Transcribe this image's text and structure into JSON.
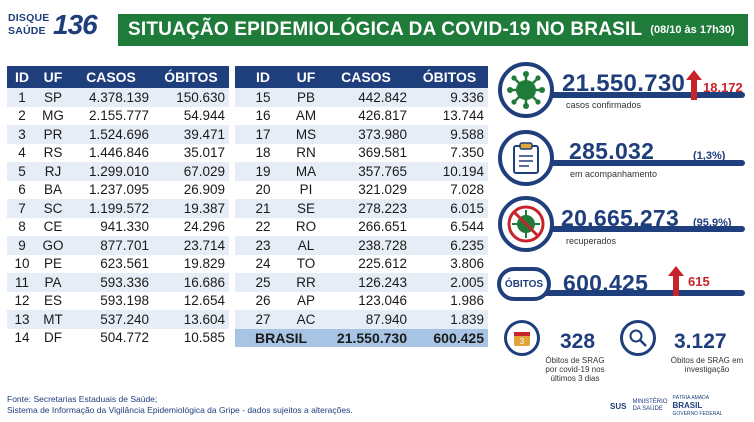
{
  "logo": {
    "line1": "DISQUE",
    "line2": "SAÚDE",
    "number": "136"
  },
  "title": "SITUAÇÃO EPIDEMIOLÓGICA DA COVID-19 NO BRASIL",
  "date": "(08/10 às 17h30)",
  "table": {
    "headers": [
      "ID",
      "UF",
      "CASOS",
      "ÓBITOS"
    ],
    "left": [
      [
        "1",
        "SP",
        "4.378.139",
        "150.630"
      ],
      [
        "2",
        "MG",
        "2.155.777",
        "54.944"
      ],
      [
        "3",
        "PR",
        "1.524.696",
        "39.471"
      ],
      [
        "4",
        "RS",
        "1.446.846",
        "35.017"
      ],
      [
        "5",
        "RJ",
        "1.299.010",
        "67.029"
      ],
      [
        "6",
        "BA",
        "1.237.095",
        "26.909"
      ],
      [
        "7",
        "SC",
        "1.199.572",
        "19.387"
      ],
      [
        "8",
        "CE",
        "941.330",
        "24.296"
      ],
      [
        "9",
        "GO",
        "877.701",
        "23.714"
      ],
      [
        "10",
        "PE",
        "623.561",
        "19.829"
      ],
      [
        "11",
        "PA",
        "593.336",
        "16.686"
      ],
      [
        "12",
        "ES",
        "593.198",
        "12.654"
      ],
      [
        "13",
        "MT",
        "537.240",
        "13.604"
      ],
      [
        "14",
        "DF",
        "504.772",
        "10.585"
      ]
    ],
    "right": [
      [
        "15",
        "PB",
        "442.842",
        "9.336"
      ],
      [
        "16",
        "AM",
        "426.817",
        "13.744"
      ],
      [
        "17",
        "MS",
        "373.980",
        "9.588"
      ],
      [
        "18",
        "RN",
        "369.581",
        "7.350"
      ],
      [
        "19",
        "MA",
        "357.765",
        "10.194"
      ],
      [
        "20",
        "PI",
        "321.029",
        "7.028"
      ],
      [
        "21",
        "SE",
        "278.223",
        "6.015"
      ],
      [
        "22",
        "RO",
        "266.651",
        "6.544"
      ],
      [
        "23",
        "AL",
        "238.728",
        "6.235"
      ],
      [
        "24",
        "TO",
        "225.612",
        "3.806"
      ],
      [
        "25",
        "RR",
        "126.243",
        "2.005"
      ],
      [
        "26",
        "AP",
        "123.046",
        "1.986"
      ],
      [
        "27",
        "AC",
        "87.940",
        "1.839"
      ]
    ],
    "total": {
      "label": "BRASIL",
      "casos": "21.550.730",
      "obitos": "600.425"
    }
  },
  "stats": {
    "confirmados": {
      "value": "21.550.730",
      "label": "casos confirmados",
      "delta": "18.172"
    },
    "acompanhamento": {
      "value": "285.032",
      "label": "em acompanhamento",
      "pct": "(1,3%)"
    },
    "recuperados": {
      "value": "20.665.273",
      "label": "recuperados",
      "pct": "(95,9%)"
    },
    "obitos": {
      "badge": "ÓBITOS",
      "value": "600.425",
      "delta": "615"
    },
    "srag_24h": {
      "value": "328",
      "label": "Óbitos de SRAG por covid-19 nos últimos 3 dias"
    },
    "srag_inv": {
      "value": "3.127",
      "label": "Óbitos de SRAG em investigação"
    }
  },
  "footer": {
    "line1": "Fonte: Secretarias Estaduais de Saúde;",
    "line2": "Sistema de Informação da Vigilância Epidemiológica da Gripe - dados sujeitos a alterações."
  },
  "gov": {
    "sus": "SUS",
    "ministry": "MINISTÉRIO DA SAÚDE",
    "patria": "PÁTRIA AMADA",
    "brasil": "BRASIL",
    "gov": "GOVERNO FEDERAL"
  },
  "colors": {
    "navy": "#1f3e7c",
    "green": "#1f7b3a",
    "red": "#c8222a",
    "row_alt": "#e6edf6"
  }
}
